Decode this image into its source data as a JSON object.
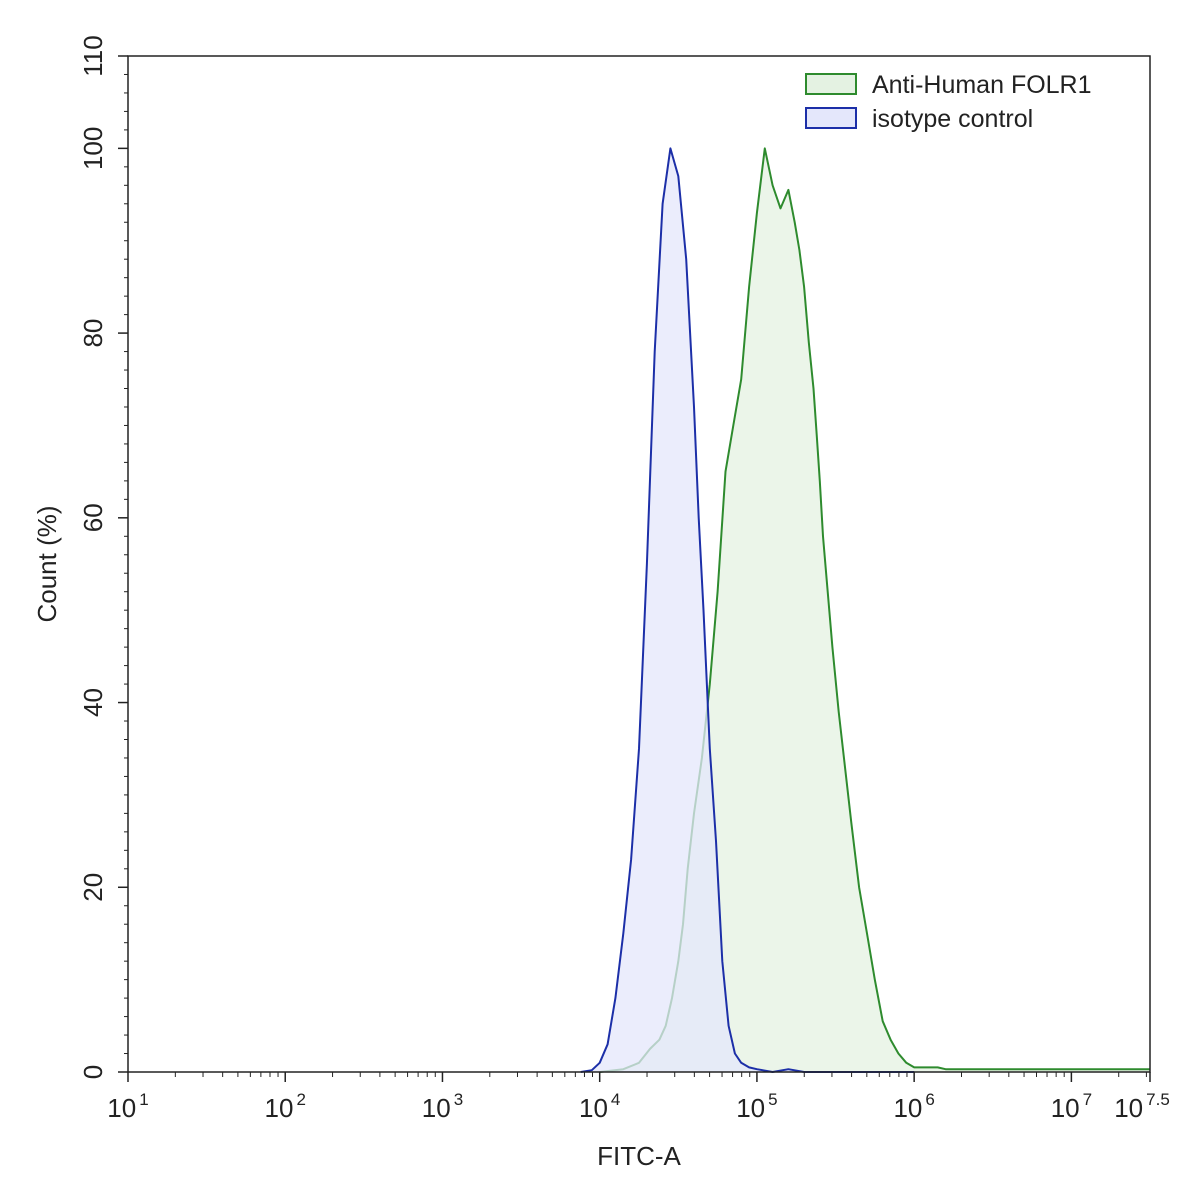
{
  "chart_data": {
    "type": "area",
    "xlabel": "FITC-A",
    "ylabel": "Count  (%)",
    "x_scale": "log10",
    "xlim_exp": [
      1,
      7.5
    ],
    "x_ticks": [
      {
        "base": "10",
        "exp": "1",
        "value": 1
      },
      {
        "base": "10",
        "exp": "2",
        "value": 2
      },
      {
        "base": "10",
        "exp": "3",
        "value": 3
      },
      {
        "base": "10",
        "exp": "4",
        "value": 4
      },
      {
        "base": "10",
        "exp": "5",
        "value": 5
      },
      {
        "base": "10",
        "exp": "6",
        "value": 6
      },
      {
        "base": "10",
        "exp": "7",
        "value": 7
      },
      {
        "base": "10",
        "exp": "7.5",
        "value": 7.5
      }
    ],
    "ylim": [
      0,
      110
    ],
    "y_ticks": [
      "0",
      "20",
      "40",
      "60",
      "80",
      "100",
      "110"
    ],
    "legend_position": "top-right",
    "series": [
      {
        "name": "Anti-Human FOLR1",
        "line_color": "#2e8b2e",
        "fill_color": "#e4f2e2",
        "x_log10": [
          4.0,
          4.15,
          4.25,
          4.32,
          4.38,
          4.42,
          4.46,
          4.5,
          4.53,
          4.56,
          4.6,
          4.65,
          4.7,
          4.75,
          4.8,
          4.85,
          4.9,
          4.95,
          5.0,
          5.05,
          5.1,
          5.15,
          5.2,
          5.24,
          5.27,
          5.3,
          5.33,
          5.36,
          5.38,
          5.4,
          5.42,
          5.45,
          5.48,
          5.52,
          5.56,
          5.6,
          5.65,
          5.7,
          5.75,
          5.8,
          5.85,
          5.9,
          5.95,
          6.0,
          6.05,
          6.1,
          6.15,
          6.2,
          6.25,
          6.3,
          6.4,
          6.5,
          6.6,
          6.7,
          6.8,
          6.9,
          7.0,
          7.1,
          7.2,
          7.3,
          7.4,
          7.5
        ],
        "y": [
          0,
          0.3,
          1,
          2.5,
          3.5,
          5,
          8,
          12,
          16,
          22,
          28,
          34,
          42,
          52,
          65,
          70,
          75,
          85,
          93,
          100,
          96,
          93.5,
          95.5,
          92,
          89,
          85,
          79,
          74,
          69,
          64,
          58,
          52,
          46,
          39,
          33,
          27,
          20,
          15,
          10,
          5.5,
          3.5,
          2,
          1,
          0.5,
          0.5,
          0.5,
          0.5,
          0.3,
          0.3,
          0.3,
          0.3,
          0.3,
          0.3,
          0.3,
          0.3,
          0.3,
          0.3,
          0.3,
          0.3,
          0.3,
          0.3,
          0.3
        ]
      },
      {
        "name": "isotype control",
        "line_color": "#1c2fa8",
        "fill_color": "#e4e7fb",
        "x_log10": [
          3.88,
          3.95,
          4.0,
          4.05,
          4.1,
          4.15,
          4.2,
          4.25,
          4.3,
          4.35,
          4.4,
          4.45,
          4.5,
          4.55,
          4.6,
          4.63,
          4.66,
          4.7,
          4.74,
          4.78,
          4.82,
          4.86,
          4.9,
          4.95,
          5.0,
          5.1,
          5.2,
          5.3,
          5.5,
          5.8,
          6.0
        ],
        "y": [
          0,
          0.2,
          1,
          3,
          8,
          15,
          23,
          35,
          55,
          78,
          94,
          100,
          97,
          88,
          72,
          60,
          50,
          35,
          25,
          12,
          5,
          2,
          1,
          0.5,
          0.3,
          0,
          0.3,
          0,
          0,
          0,
          0
        ]
      }
    ]
  }
}
